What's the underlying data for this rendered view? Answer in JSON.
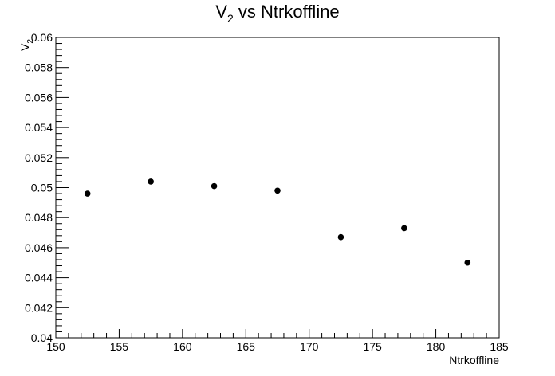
{
  "chart_data": {
    "type": "scatter",
    "title_main": "V",
    "title_sub": "2",
    "title_rest": " vs Ntrkoffline",
    "xlabel": "Ntrkoffline",
    "ylabel_main": "V",
    "ylabel_sub": "2",
    "xlim": [
      150,
      185
    ],
    "ylim": [
      0.04,
      0.06
    ],
    "xticks": [
      "150",
      "155",
      "160",
      "165",
      "170",
      "175",
      "180",
      "185"
    ],
    "yticks": [
      "0.04",
      "0.042",
      "0.044",
      "0.046",
      "0.048",
      "0.05",
      "0.052",
      "0.054",
      "0.056",
      "0.058",
      "0.06"
    ],
    "grid": false,
    "points": [
      {
        "x": 152.5,
        "y": 0.0496
      },
      {
        "x": 157.5,
        "y": 0.0504
      },
      {
        "x": 162.5,
        "y": 0.0501
      },
      {
        "x": 167.5,
        "y": 0.0498
      },
      {
        "x": 172.5,
        "y": 0.0467
      },
      {
        "x": 177.5,
        "y": 0.0473
      },
      {
        "x": 182.5,
        "y": 0.045
      }
    ],
    "marker_color": "#000000"
  }
}
